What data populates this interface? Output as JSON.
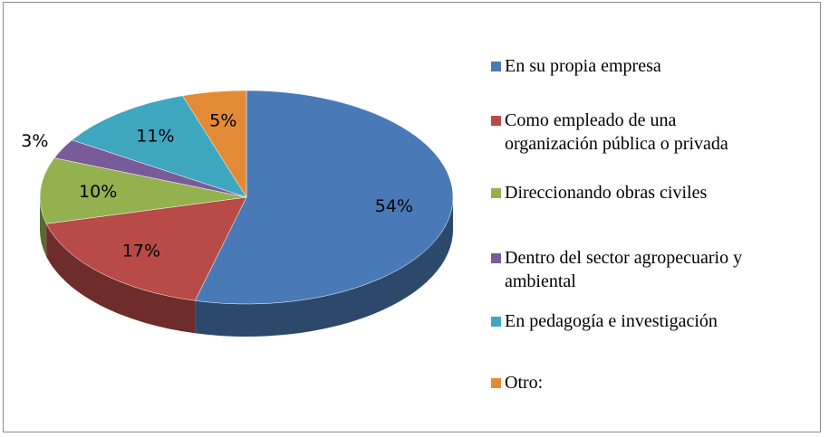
{
  "chart_data": {
    "type": "pie",
    "categories": [
      "En su propia empresa",
      "Como empleado de una\norganización pública o privada",
      "Direccionando obras civiles",
      "Dentro del sector agropecuario y\nambiental",
      "En pedagogía e investigación",
      "Otro:"
    ],
    "values": [
      54,
      17,
      10,
      3,
      11,
      5
    ],
    "value_labels": [
      "54%",
      "17%",
      "10%",
      "3%",
      "11%",
      "5%"
    ],
    "colors": [
      "#4a7ab5",
      "#b84a47",
      "#93b14f",
      "#7a5b9a",
      "#3fa6c0",
      "#e38a36"
    ],
    "legend": "right"
  }
}
